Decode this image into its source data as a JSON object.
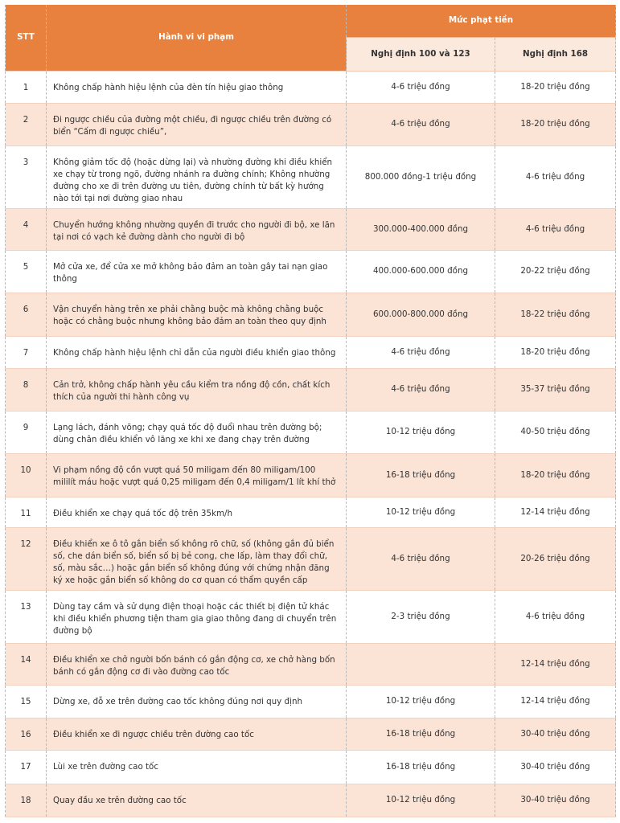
{
  "table": {
    "headers": {
      "stt": "STT",
      "violation": "Hành vi vi phạm",
      "fine_group": "Mức phạt tiền",
      "decree_old": "Nghị định 100 và 123",
      "decree_new": "Nghị định 168"
    },
    "rows": [
      {
        "stt": "1",
        "violation": "Không chấp hành hiệu lệnh của đèn tín hiệu giao thông",
        "old": "4-6 triệu đồng",
        "new": "18-20 triệu đồng"
      },
      {
        "stt": "2",
        "violation": "Đi ngược chiều của đường một chiều, đi ngược chiều trên đường có biển “Cấm đi ngược chiều”,",
        "old": "4-6 triệu đồng",
        "new": "18-20 triệu đồng"
      },
      {
        "stt": "3",
        "violation": "Không giảm tốc độ (hoặc dừng lại) và nhường đường khi điều khiển xe chạy từ trong ngõ, đường nhánh ra đường chính; Không nhường đường cho xe đi trên đường ưu tiên, đường chính từ bất kỳ hướng nào tới tại nơi đường giao nhau",
        "old": "800.000 đồng-1 triệu đồng",
        "new": "4-6 triệu đồng"
      },
      {
        "stt": "4",
        "violation": "Chuyển hướng không nhường quyền đi trước cho người đi bộ, xe lăn tại nơi có vạch kẻ đường dành cho người đi bộ",
        "old": "300.000-400.000 đồng",
        "new": "4-6 triệu đồng"
      },
      {
        "stt": "5",
        "violation": "Mở cửa xe, để cửa xe mở không bảo đảm an toàn gây tai nạn giao thông",
        "old": "400.000-600.000 đồng",
        "new": "20-22 triệu đồng"
      },
      {
        "stt": "6",
        "violation": "Vận chuyển hàng trên xe phải chằng buộc mà không chằng buộc hoặc có chằng buộc nhưng không bảo đảm an toàn theo quy định",
        "old": "600.000-800.000 đồng",
        "new": "18-22 triệu đồng"
      },
      {
        "stt": "7",
        "violation": "Không chấp hành hiệu lệnh chỉ dẫn của người điều khiển giao thông",
        "old": "4-6 triệu đồng",
        "new": "18-20 triệu đồng"
      },
      {
        "stt": "8",
        "violation": "Cản trở, không chấp hành yêu cầu kiểm tra nồng độ cồn, chất kích thích của người thi hành công vụ",
        "old": "4-6 triệu đồng",
        "new": "35-37 triệu đồng"
      },
      {
        "stt": "9",
        "violation": "Lạng lách, đánh võng; chạy quá tốc độ đuổi nhau trên đường bộ; dùng chân điều khiển vô lăng xe khi xe đang chạy trên đường",
        "old": "10-12 triệu đồng",
        "new": "40-50 triệu đồng"
      },
      {
        "stt": "10",
        "violation": "Vi phạm nồng độ cồn vượt quá 50 miligam đến 80 miligam/100 mililít máu hoặc vượt quá 0,25 miligam đến 0,4 miligam/1 lít khí thở",
        "old": "16-18 triệu đồng",
        "new": "18-20 triệu đồng"
      },
      {
        "stt": "11",
        "violation": "Điều khiển xe chạy quá tốc độ trên 35km/h",
        "old": "10-12 triệu đồng",
        "new": "12-14 triệu đồng"
      },
      {
        "stt": "12",
        "violation": "Điều khiển xe ô tô gắn biển số không rõ chữ, số (không gắn đủ biển số, che dán biển số, biển số bị bẻ cong, che lấp, làm thay đổi chữ, số, màu sắc…) hoặc gắn biển số không đúng với chứng nhận đăng ký xe hoặc gắn biển số không do cơ quan có thẩm quyền cấp",
        "old": "4-6 triệu đồng",
        "new": "20-26 triệu đồng"
      },
      {
        "stt": "13",
        "violation": "Dùng tay cầm và sử dụng điện thoại hoặc các thiết bị điện tử khác khi điều khiển phương tiện tham gia giao thông đang di chuyển trên đường bộ",
        "old": "2-3 triệu đồng",
        "new": "4-6 triệu đồng"
      },
      {
        "stt": "14",
        "violation": "Điều khiển xe chở người bốn bánh có gắn động cơ, xe chở hàng bốn bánh có gắn động cơ đi vào đường cao tốc",
        "old": "",
        "new": "12-14 triệu đồng"
      },
      {
        "stt": "15",
        "violation": "Dừng xe, đỗ xe trên đường cao tốc không đúng nơi quy định",
        "old": "10-12 triệu đồng",
        "new": "12-14 triệu đồng"
      },
      {
        "stt": "16",
        "violation": "Điều khiển xe đi ngược chiều trên đường cao tốc",
        "old": "16-18 triệu đồng",
        "new": "30-40 triệu đồng"
      },
      {
        "stt": "17",
        "violation": "Lùi xe trên đường cao tốc",
        "old": "16-18 triệu đồng",
        "new": "30-40 triệu đồng"
      },
      {
        "stt": "18",
        "violation": "Quay đầu xe trên đường cao tốc",
        "old": "10-12 triệu đồng",
        "new": "30-40 triệu đồng"
      }
    ]
  },
  "colors": {
    "header": "#e8803e",
    "subheader": "#fce9dd",
    "alt_row": "#fbe3d6"
  }
}
